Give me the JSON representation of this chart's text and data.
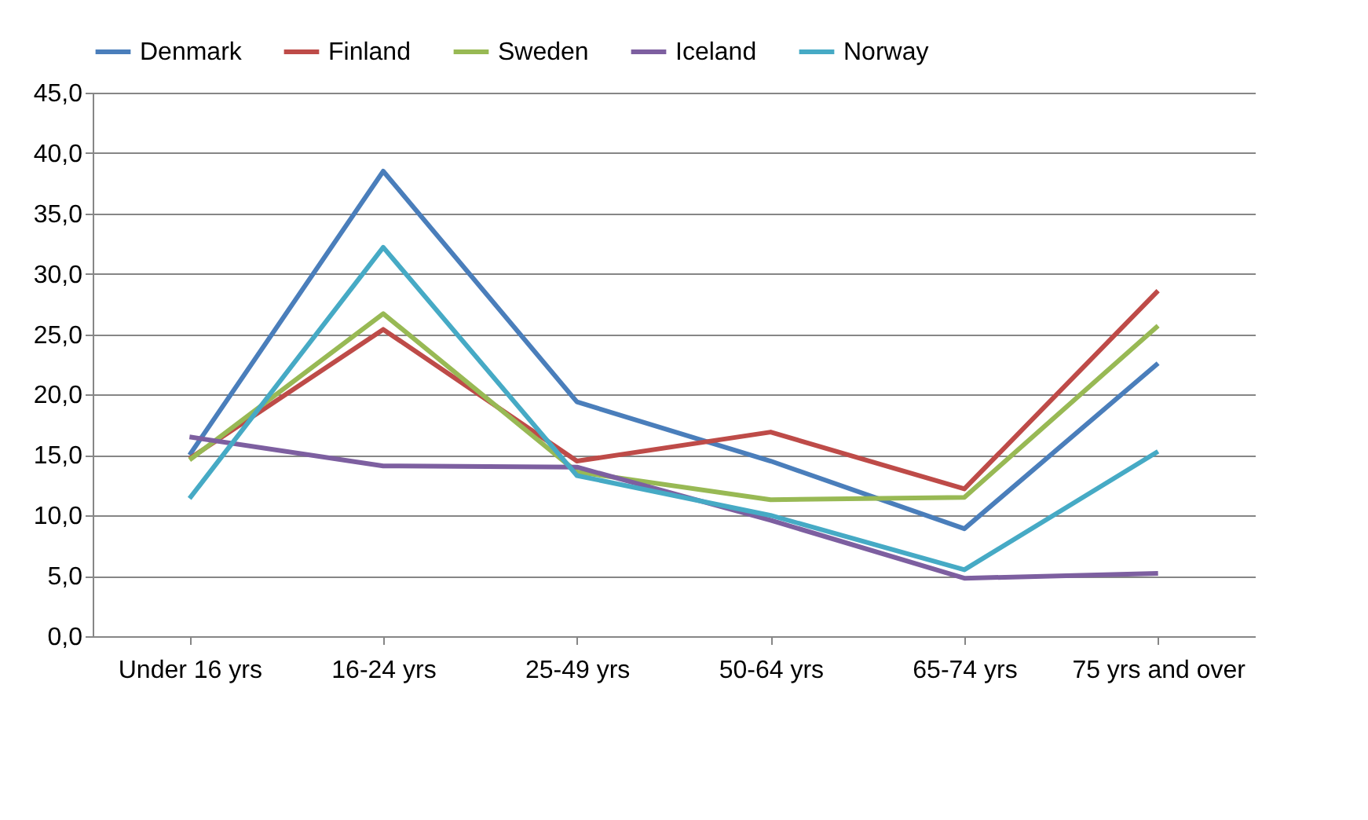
{
  "chart_data": {
    "type": "line",
    "categories": [
      "Under 16 yrs",
      "16-24 yrs",
      "25-49 yrs",
      "50-64 yrs",
      "65-74 yrs",
      "75 yrs and over"
    ],
    "series": [
      {
        "name": "Denmark",
        "color": "#4a7ebb",
        "values": [
          15.0,
          38.5,
          19.4,
          14.5,
          8.9,
          22.6
        ]
      },
      {
        "name": "Finland",
        "color": "#be4b48",
        "values": [
          14.7,
          25.4,
          14.5,
          16.9,
          12.2,
          28.6
        ]
      },
      {
        "name": "Sweden",
        "color": "#98b954",
        "values": [
          14.6,
          26.7,
          13.6,
          11.3,
          11.5,
          25.7
        ]
      },
      {
        "name": "Iceland",
        "color": "#7d5fa0",
        "values": [
          16.5,
          14.1,
          14.0,
          9.6,
          4.8,
          5.2
        ]
      },
      {
        "name": "Norway",
        "color": "#46aac5",
        "values": [
          11.4,
          32.2,
          13.3,
          10.0,
          5.5,
          15.3
        ]
      }
    ],
    "ylim": [
      0,
      45
    ],
    "yticks": [
      {
        "value": 0,
        "label": "0,0"
      },
      {
        "value": 5,
        "label": "5,0"
      },
      {
        "value": 10,
        "label": "10,0"
      },
      {
        "value": 15,
        "label": "15,0"
      },
      {
        "value": 20,
        "label": "20,0"
      },
      {
        "value": 25,
        "label": "25,0"
      },
      {
        "value": 30,
        "label": "30,0"
      },
      {
        "value": 35,
        "label": "35,0"
      },
      {
        "value": 40,
        "label": "40,0"
      },
      {
        "value": 45,
        "label": "45,0"
      }
    ],
    "grid": "y",
    "legend": "top",
    "marker": "none",
    "line_style": "solid"
  }
}
